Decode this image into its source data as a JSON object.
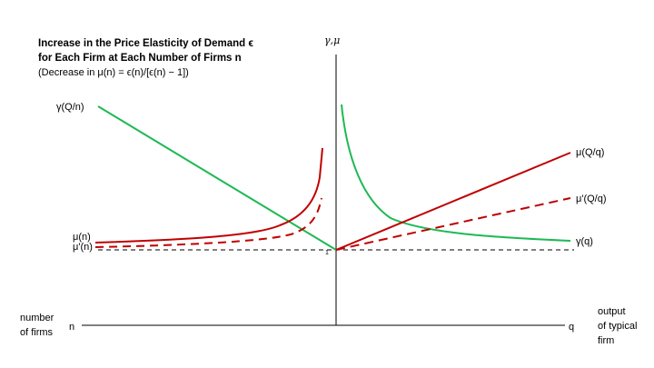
{
  "title": {
    "line1": "Increase in the Price Elasticity of Demand ϵ",
    "line2": "for Each Firm at Each Number of Firms n",
    "line3": "(Decrease in μ(n) = ϵ(n)/[ϵ(n) − 1])"
  },
  "axes": {
    "vertical_label": "γ,μ",
    "left_axis_label": "number of firms",
    "left_axis_lines": [
      "number",
      "of firms"
    ],
    "left_axis_symbol": "n",
    "right_axis_label": "output of typical firm",
    "right_axis_lines": [
      "output",
      "of typical",
      "firm"
    ],
    "right_axis_symbol": "q",
    "unit_tick": "1"
  },
  "curve_labels": {
    "gamma_Qn": "γ(Q/n)",
    "mu_n": "μ(n)",
    "mu_prime_n": "μ'(n)",
    "mu_Qq": "μ(Q/q)",
    "mu_prime_Qq": "μ'(Q/q)",
    "gamma_q": "γ(q)"
  },
  "colors": {
    "green": "#1db954",
    "red": "#c00000",
    "axis": "#000000"
  }
}
